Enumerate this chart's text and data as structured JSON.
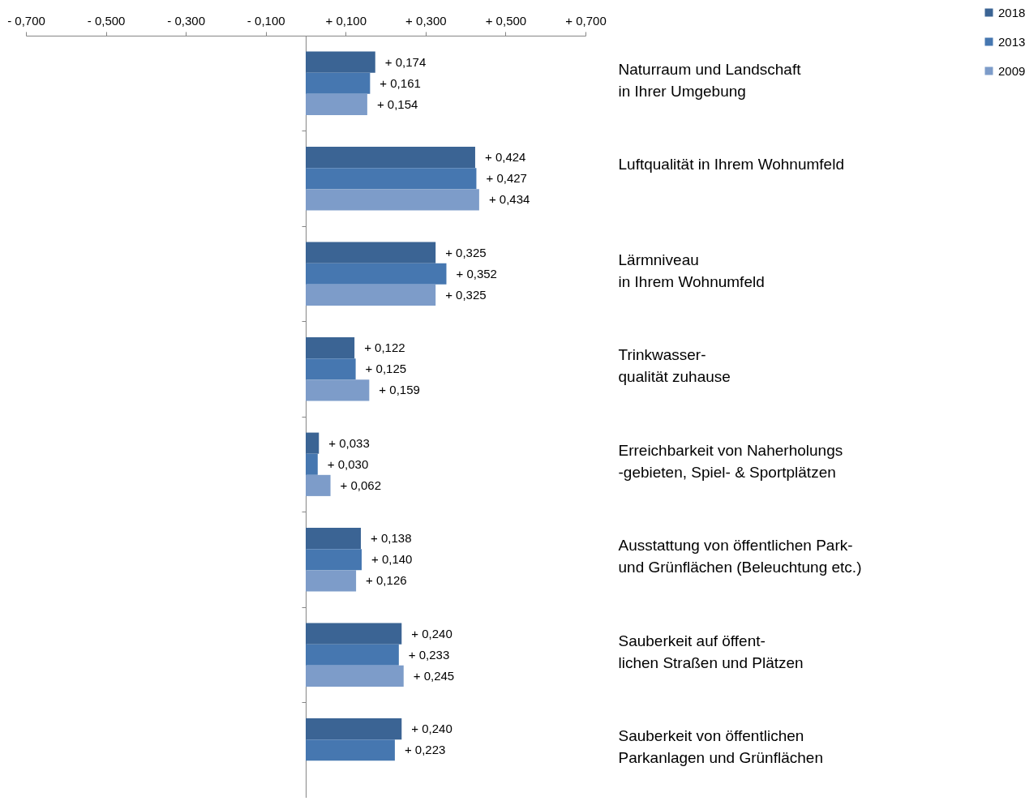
{
  "chart_data": {
    "type": "bar",
    "orientation": "horizontal",
    "categories": [
      "Naturraum und Landschaft\nin Ihrer Umgebung",
      "Luftqualität in Ihrem Wohnumfeld",
      "Lärmniveau\nin Ihrem Wohnumfeld",
      "Trinkwasser-\nqualität zuhause",
      "Erreichbarkeit von Naherholungs\n-gebieten, Spiel- & Sportplätzen",
      "Ausstattung von öffentlichen Park-\nund Grünflächen (Beleuchtung etc.)",
      "Sauberkeit auf öffent-\nlichen Straßen und Plätzen",
      "Sauberkeit von öffentlichen\nParkanlagen und Grünflächen"
    ],
    "series": [
      {
        "name": "2018",
        "color": "#3b6494",
        "values": [
          0.174,
          0.424,
          0.325,
          0.122,
          0.033,
          0.138,
          0.24,
          0.24
        ],
        "value_labels": [
          "+ 0,174",
          "+ 0,424",
          "+ 0,325",
          "+ 0,122",
          "+ 0,033",
          "+ 0,138",
          "+ 0,240",
          "+ 0,240"
        ]
      },
      {
        "name": "2013",
        "color": "#4677b0",
        "values": [
          0.161,
          0.427,
          0.352,
          0.125,
          0.03,
          0.14,
          0.233,
          0.223
        ],
        "value_labels": [
          "+ 0,161",
          "+ 0,427",
          "+ 0,352",
          "+ 0,125",
          "+ 0,030",
          "+ 0,140",
          "+ 0,233",
          "+ 0,223"
        ]
      },
      {
        "name": "2009",
        "color": "#7d9cc9",
        "values": [
          0.154,
          0.434,
          0.325,
          0.159,
          0.062,
          0.126,
          0.245,
          null
        ],
        "value_labels": [
          "+ 0,154",
          "+ 0,434",
          "+ 0,325",
          "+ 0,159",
          "+ 0,062",
          "+ 0,126",
          "+ 0,245",
          null
        ]
      }
    ],
    "xlim": [
      -0.7,
      0.7
    ],
    "xticks": [
      {
        "value": -0.7,
        "label": "- 0,700"
      },
      {
        "value": -0.5,
        "label": "- 0,500"
      },
      {
        "value": -0.3,
        "label": "- 0,300"
      },
      {
        "value": -0.1,
        "label": "- 0,100"
      },
      {
        "value": 0.1,
        "label": "+ 0,100"
      },
      {
        "value": 0.3,
        "label": "+ 0,300"
      },
      {
        "value": 0.5,
        "label": "+ 0,500"
      },
      {
        "value": 0.7,
        "label": "+ 0,700"
      }
    ],
    "legend": "top right"
  }
}
